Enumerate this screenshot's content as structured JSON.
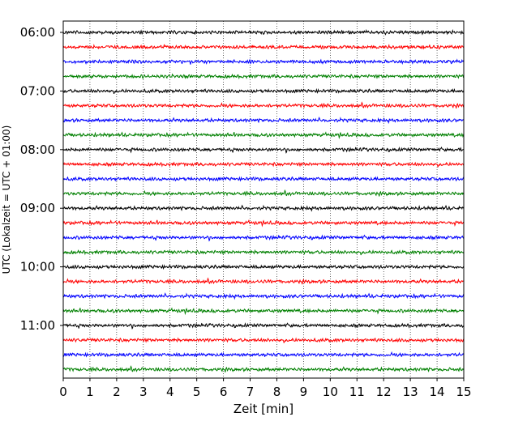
{
  "chart_data": {
    "type": "line",
    "xlabel": "Zeit  [min]",
    "ylabel": "UTC (Lokalzeit = UTC + 01:00)",
    "xlim": [
      0,
      15
    ],
    "x_ticks": [
      0,
      1,
      2,
      3,
      4,
      5,
      6,
      7,
      8,
      9,
      10,
      11,
      12,
      13,
      14,
      15
    ],
    "y_tick_labels": [
      "06:00",
      "07:00",
      "08:00",
      "09:00",
      "10:00",
      "11:00"
    ],
    "grid": "vertical dotted lines at each minute",
    "trace_interval_minutes": 15,
    "traces": [
      {
        "start": "06:00",
        "color": "#000000"
      },
      {
        "start": "06:15",
        "color": "#ff0000"
      },
      {
        "start": "06:30",
        "color": "#0000ff"
      },
      {
        "start": "06:45",
        "color": "#008000"
      },
      {
        "start": "07:00",
        "color": "#000000"
      },
      {
        "start": "07:15",
        "color": "#ff0000"
      },
      {
        "start": "07:30",
        "color": "#0000ff"
      },
      {
        "start": "07:45",
        "color": "#008000"
      },
      {
        "start": "08:00",
        "color": "#000000"
      },
      {
        "start": "08:15",
        "color": "#ff0000"
      },
      {
        "start": "08:30",
        "color": "#0000ff"
      },
      {
        "start": "08:45",
        "color": "#008000"
      },
      {
        "start": "09:00",
        "color": "#000000"
      },
      {
        "start": "09:15",
        "color": "#ff0000"
      },
      {
        "start": "09:30",
        "color": "#0000ff"
      },
      {
        "start": "09:45",
        "color": "#008000"
      },
      {
        "start": "10:00",
        "color": "#000000"
      },
      {
        "start": "10:15",
        "color": "#ff0000"
      },
      {
        "start": "10:30",
        "color": "#0000ff"
      },
      {
        "start": "10:45",
        "color": "#008000"
      },
      {
        "start": "11:00",
        "color": "#000000"
      },
      {
        "start": "11:15",
        "color": "#ff0000"
      },
      {
        "start": "11:30",
        "color": "#0000ff"
      },
      {
        "start": "11:45",
        "color": "#008000"
      }
    ]
  }
}
